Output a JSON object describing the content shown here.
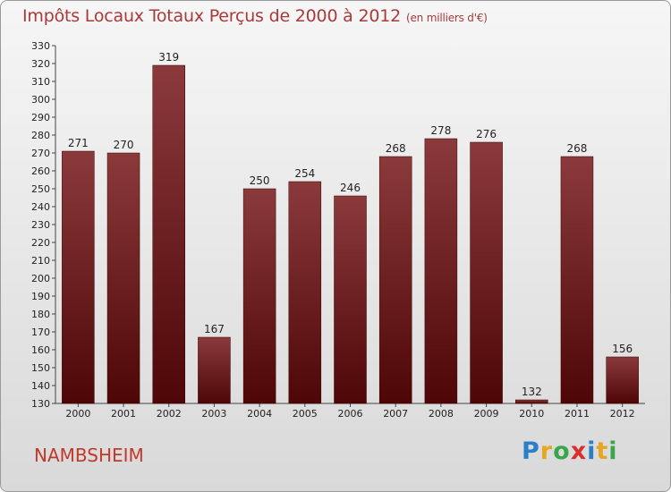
{
  "header": {
    "title": "Impôts Locaux Totaux Perçus de 2000 à 2012",
    "unit": "(en milliers d'€)"
  },
  "footer": {
    "commune": "NAMBSHEIM",
    "logo_letters": [
      "P",
      "r",
      "o",
      "x",
      "i",
      "t",
      "i"
    ],
    "logo_colors": [
      "#2a7fc9",
      "#e7a520",
      "#3aa64a",
      "#d9302a",
      "#2a7fc9",
      "#e7a520",
      "#3aa64a"
    ]
  },
  "chart_data": {
    "type": "bar",
    "title": "Impôts Locaux Totaux Perçus de 2000 à 2012",
    "xlabel": "",
    "ylabel": "",
    "categories": [
      "2000",
      "2001",
      "2002",
      "2003",
      "2004",
      "2005",
      "2006",
      "2007",
      "2008",
      "2009",
      "2010",
      "2011",
      "2012"
    ],
    "values": [
      271,
      270,
      319,
      167,
      250,
      254,
      246,
      268,
      278,
      276,
      132,
      268,
      156
    ],
    "ylim": [
      130,
      330
    ],
    "yticks": [
      130,
      140,
      150,
      160,
      170,
      180,
      190,
      200,
      210,
      220,
      230,
      240,
      250,
      260,
      270,
      280,
      290,
      300,
      310,
      320,
      330
    ],
    "grid": false,
    "bar_color_top": "#8b3a3c",
    "bar_color_bottom": "#4e0606"
  }
}
